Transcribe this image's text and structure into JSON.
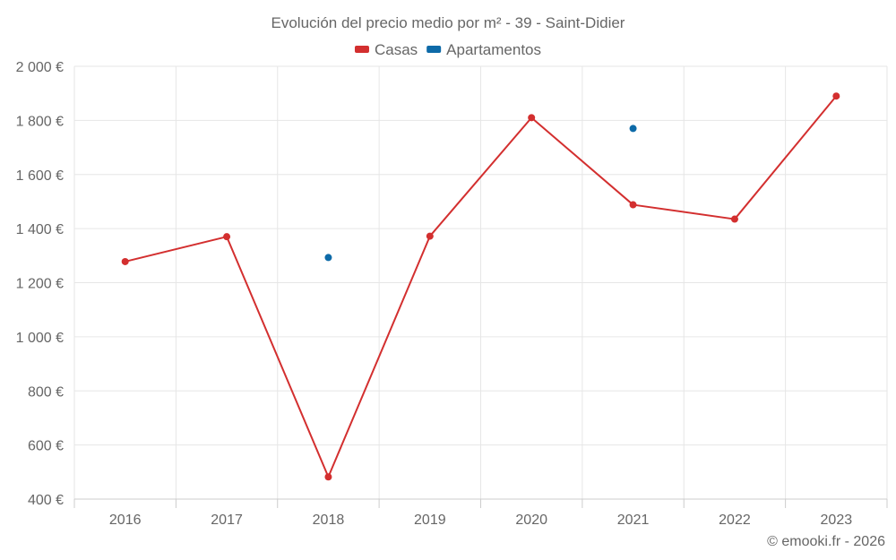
{
  "chart_data": {
    "type": "line",
    "title": "Evolución del precio medio por m² - 39 - Saint-Didier",
    "categories": [
      "2016",
      "2017",
      "2018",
      "2019",
      "2020",
      "2021",
      "2022",
      "2023"
    ],
    "y_ticks": [
      "400 €",
      "600 €",
      "800 €",
      "1 000 €",
      "1 200 €",
      "1 400 €",
      "1 600 €",
      "1 800 €",
      "2 000 €"
    ],
    "y_tick_values": [
      400,
      600,
      800,
      1000,
      1200,
      1400,
      1600,
      1800,
      2000
    ],
    "ylim": [
      400,
      2000
    ],
    "grid": true,
    "legend_position": "top-center",
    "series": [
      {
        "name": "Casas",
        "color": "#d32f2f",
        "values": [
          1278,
          1370,
          482,
          1372,
          1810,
          1488,
          1435,
          1890
        ]
      },
      {
        "name": "Apartamentos",
        "color": "#0d6aa8",
        "values": [
          null,
          null,
          1293,
          null,
          null,
          1770,
          null,
          null
        ]
      }
    ]
  },
  "credit": "© emooki.fr - 2026"
}
